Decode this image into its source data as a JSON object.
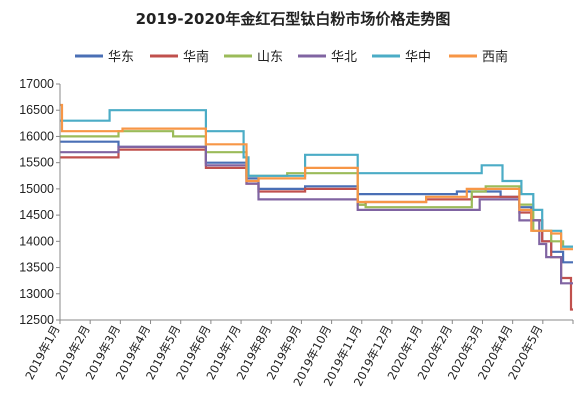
{
  "chart_data": {
    "type": "line",
    "title": "2019-2020年金红石型钛白粉市场价格走势图",
    "xlabel": "",
    "ylabel": "",
    "ylim": [
      12500,
      17000
    ],
    "yticks": [
      12500,
      13000,
      13500,
      14000,
      14500,
      15000,
      15500,
      16000,
      16500,
      17000
    ],
    "grid": false,
    "legend": "top",
    "x_start": "2019-01-01",
    "x_end": "2020-06-01",
    "xtick_labels": [
      "2019年1月",
      "2019年2月",
      "2019年3月",
      "2019年4月",
      "2019年5月",
      "2019年6月",
      "2019年7月",
      "2019年8月",
      "2019年9月",
      "2019年10月",
      "2019年11月",
      "2019年12月",
      "2020年1月",
      "2020年2月",
      "2020年3月",
      "2020年4月",
      "2020年5月"
    ],
    "series": [
      {
        "name": "华东",
        "color": "#4a6fb5",
        "points": [
          [
            "2019-01-01",
            15900
          ],
          [
            "2019-03-01",
            15900
          ],
          [
            "2019-03-01",
            15800
          ],
          [
            "2019-05-28",
            15800
          ],
          [
            "2019-05-28",
            15500
          ],
          [
            "2019-07-08",
            15500
          ],
          [
            "2019-07-08",
            15200
          ],
          [
            "2019-07-20",
            15200
          ],
          [
            "2019-07-20",
            15000
          ],
          [
            "2019-09-05",
            15000
          ],
          [
            "2019-09-05",
            15050
          ],
          [
            "2019-10-28",
            15050
          ],
          [
            "2019-10-28",
            14900
          ],
          [
            "2019-11-05",
            14900
          ],
          [
            "2019-11-05",
            14900
          ],
          [
            "2020-02-05",
            14900
          ],
          [
            "2020-02-05",
            14950
          ],
          [
            "2020-03-20",
            14950
          ],
          [
            "2020-03-20",
            14850
          ],
          [
            "2020-04-08",
            14850
          ],
          [
            "2020-04-08",
            14650
          ],
          [
            "2020-04-20",
            14650
          ],
          [
            "2020-04-20",
            14400
          ],
          [
            "2020-05-01",
            14400
          ],
          [
            "2020-05-01",
            14000
          ],
          [
            "2020-05-10",
            14000
          ],
          [
            "2020-05-10",
            13800
          ],
          [
            "2020-05-22",
            13800
          ],
          [
            "2020-05-22",
            13600
          ],
          [
            "2020-06-01",
            13600
          ]
        ]
      },
      {
        "name": "华南",
        "color": "#c0504d",
        "points": [
          [
            "2019-01-01",
            15600
          ],
          [
            "2019-03-01",
            15600
          ],
          [
            "2019-03-01",
            15750
          ],
          [
            "2019-05-28",
            15750
          ],
          [
            "2019-05-28",
            15400
          ],
          [
            "2019-07-08",
            15400
          ],
          [
            "2019-07-08",
            15100
          ],
          [
            "2019-07-20",
            15100
          ],
          [
            "2019-07-20",
            14950
          ],
          [
            "2019-09-05",
            14950
          ],
          [
            "2019-09-05",
            15000
          ],
          [
            "2019-10-28",
            15000
          ],
          [
            "2019-10-28",
            14700
          ],
          [
            "2019-11-05",
            14700
          ],
          [
            "2019-11-05",
            14750
          ],
          [
            "2020-01-05",
            14750
          ],
          [
            "2020-01-05",
            14800
          ],
          [
            "2020-02-20",
            14800
          ],
          [
            "2020-02-20",
            14850
          ],
          [
            "2020-04-08",
            14850
          ],
          [
            "2020-04-08",
            14550
          ],
          [
            "2020-04-20",
            14550
          ],
          [
            "2020-04-20",
            14400
          ],
          [
            "2020-05-01",
            14400
          ],
          [
            "2020-05-01",
            14000
          ],
          [
            "2020-05-10",
            14000
          ],
          [
            "2020-05-10",
            13700
          ],
          [
            "2020-05-20",
            13700
          ],
          [
            "2020-05-20",
            13300
          ],
          [
            "2020-05-30",
            13300
          ],
          [
            "2020-05-30",
            12700
          ],
          [
            "2020-06-01",
            12700
          ]
        ]
      },
      {
        "name": "山东",
        "color": "#9bbb59",
        "points": [
          [
            "2019-01-01",
            16000
          ],
          [
            "2019-03-01",
            16000
          ],
          [
            "2019-03-01",
            16100
          ],
          [
            "2019-04-25",
            16100
          ],
          [
            "2019-04-25",
            16000
          ],
          [
            "2019-05-28",
            16000
          ],
          [
            "2019-05-28",
            15700
          ],
          [
            "2019-07-08",
            15700
          ],
          [
            "2019-07-08",
            15250
          ],
          [
            "2019-08-18",
            15250
          ],
          [
            "2019-08-18",
            15300
          ],
          [
            "2019-10-28",
            15300
          ],
          [
            "2019-10-28",
            14700
          ],
          [
            "2019-11-05",
            14700
          ],
          [
            "2019-11-05",
            14650
          ],
          [
            "2020-02-20",
            14650
          ],
          [
            "2020-02-20",
            14950
          ],
          [
            "2020-03-05",
            14950
          ],
          [
            "2020-03-05",
            15050
          ],
          [
            "2020-04-08",
            15050
          ],
          [
            "2020-04-08",
            14700
          ],
          [
            "2020-04-22",
            14700
          ],
          [
            "2020-04-22",
            14200
          ],
          [
            "2020-05-10",
            14200
          ],
          [
            "2020-05-10",
            14000
          ],
          [
            "2020-05-22",
            14000
          ],
          [
            "2020-05-22",
            13900
          ],
          [
            "2020-06-01",
            13900
          ]
        ]
      },
      {
        "name": "华北",
        "color": "#8064a2",
        "points": [
          [
            "2019-01-01",
            15700
          ],
          [
            "2019-03-01",
            15700
          ],
          [
            "2019-03-01",
            15800
          ],
          [
            "2019-05-28",
            15800
          ],
          [
            "2019-05-28",
            15450
          ],
          [
            "2019-07-08",
            15450
          ],
          [
            "2019-07-08",
            15100
          ],
          [
            "2019-07-20",
            15100
          ],
          [
            "2019-07-20",
            14800
          ],
          [
            "2019-10-28",
            14800
          ],
          [
            "2019-10-28",
            14600
          ],
          [
            "2020-02-28",
            14600
          ],
          [
            "2020-02-28",
            14800
          ],
          [
            "2020-04-08",
            14800
          ],
          [
            "2020-04-08",
            14400
          ],
          [
            "2020-04-28",
            14400
          ],
          [
            "2020-04-28",
            13950
          ],
          [
            "2020-05-05",
            13950
          ],
          [
            "2020-05-05",
            13700
          ],
          [
            "2020-05-20",
            13700
          ],
          [
            "2020-05-20",
            13200
          ],
          [
            "2020-06-01",
            13200
          ]
        ]
      },
      {
        "name": "华中",
        "color": "#4bacc6",
        "points": [
          [
            "2019-01-01",
            16300
          ],
          [
            "2019-02-20",
            16300
          ],
          [
            "2019-02-20",
            16500
          ],
          [
            "2019-05-28",
            16500
          ],
          [
            "2019-05-28",
            16100
          ],
          [
            "2019-07-05",
            16100
          ],
          [
            "2019-07-05",
            15600
          ],
          [
            "2019-07-10",
            15600
          ],
          [
            "2019-07-10",
            15250
          ],
          [
            "2019-09-05",
            15250
          ],
          [
            "2019-09-05",
            15650
          ],
          [
            "2019-10-28",
            15650
          ],
          [
            "2019-10-28",
            15300
          ],
          [
            "2020-03-01",
            15300
          ],
          [
            "2020-03-01",
            15450
          ],
          [
            "2020-03-22",
            15450
          ],
          [
            "2020-03-22",
            15150
          ],
          [
            "2020-04-10",
            15150
          ],
          [
            "2020-04-10",
            14900
          ],
          [
            "2020-04-22",
            14900
          ],
          [
            "2020-04-22",
            14600
          ],
          [
            "2020-05-01",
            14600
          ],
          [
            "2020-05-01",
            14200
          ],
          [
            "2020-05-20",
            14200
          ],
          [
            "2020-05-20",
            13900
          ],
          [
            "2020-06-01",
            13900
          ]
        ]
      },
      {
        "name": "西南",
        "color": "#f79646",
        "points": [
          [
            "2019-01-01",
            16600
          ],
          [
            "2019-01-03",
            16600
          ],
          [
            "2019-01-03",
            16100
          ],
          [
            "2019-03-05",
            16100
          ],
          [
            "2019-03-05",
            16150
          ],
          [
            "2019-05-28",
            16150
          ],
          [
            "2019-05-28",
            15850
          ],
          [
            "2019-07-08",
            15850
          ],
          [
            "2019-07-08",
            15150
          ],
          [
            "2019-07-20",
            15150
          ],
          [
            "2019-07-20",
            15200
          ],
          [
            "2019-09-05",
            15200
          ],
          [
            "2019-09-05",
            15400
          ],
          [
            "2019-10-28",
            15400
          ],
          [
            "2019-10-28",
            14750
          ],
          [
            "2020-01-05",
            14750
          ],
          [
            "2020-01-05",
            14850
          ],
          [
            "2020-02-15",
            14850
          ],
          [
            "2020-02-15",
            15000
          ],
          [
            "2020-04-08",
            15000
          ],
          [
            "2020-04-08",
            14600
          ],
          [
            "2020-04-20",
            14600
          ],
          [
            "2020-04-20",
            14200
          ],
          [
            "2020-05-10",
            14200
          ],
          [
            "2020-05-10",
            14150
          ],
          [
            "2020-05-20",
            14150
          ],
          [
            "2020-05-20",
            13850
          ],
          [
            "2020-06-01",
            13850
          ]
        ]
      }
    ]
  }
}
